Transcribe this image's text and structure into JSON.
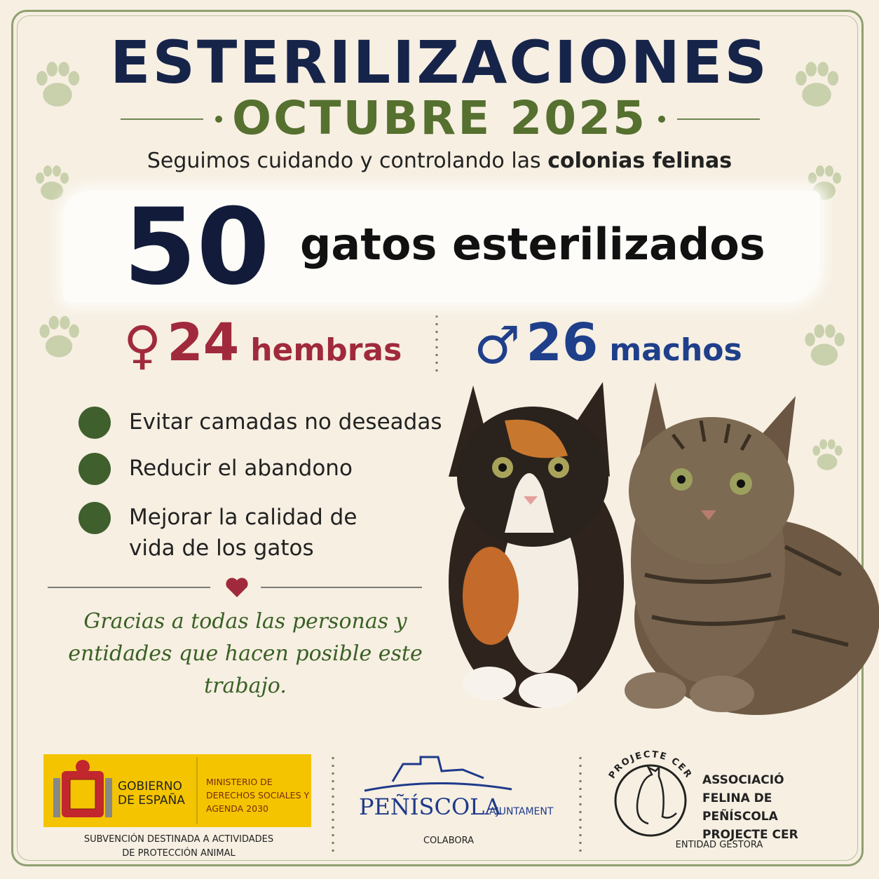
{
  "header": {
    "title": "ESTERILIZACIONES",
    "subtitle": "OCTUBRE 2025",
    "tagline": "Seguimos cuidando y controlando las",
    "tagline_bold": "colonias felinas"
  },
  "total": {
    "value": "50",
    "label": "gatos esterilizados"
  },
  "breakdown": [
    {
      "symbol": "♀",
      "value": "24",
      "label": "hembras"
    },
    {
      "symbol": "♂",
      "value": "26",
      "label": "machos"
    }
  ],
  "benefits": [
    "Evitar camadas no deseadas",
    "Reducir el abandono",
    "Mejorar la calidad de vida de los gatos"
  ],
  "thanks": "Gracias a todas las personas y entidades que hacen posible este trabajo.",
  "footer": {
    "government": {
      "name": "GOBIERNO DE ESPAÑA",
      "ministry": "MINISTERIO DE DERECHOS SOCIALES Y AGENDA 2030",
      "caption": "SUBVENCIÓN DESTINADA A ACTIVIDADES DE PROTECCIÓN ANIMAL"
    },
    "town": {
      "name": "PEÑÍSCOLA",
      "suffix": "AJUNTAMENT",
      "caption": "COLABORA"
    },
    "association": {
      "seal": "PROJECTE CER",
      "name": "ASSOCIACIÓ FELINA DE PEÑÍSCOLA PROJECTE CER",
      "caption": "ENTIDAD GESTORA"
    }
  }
}
